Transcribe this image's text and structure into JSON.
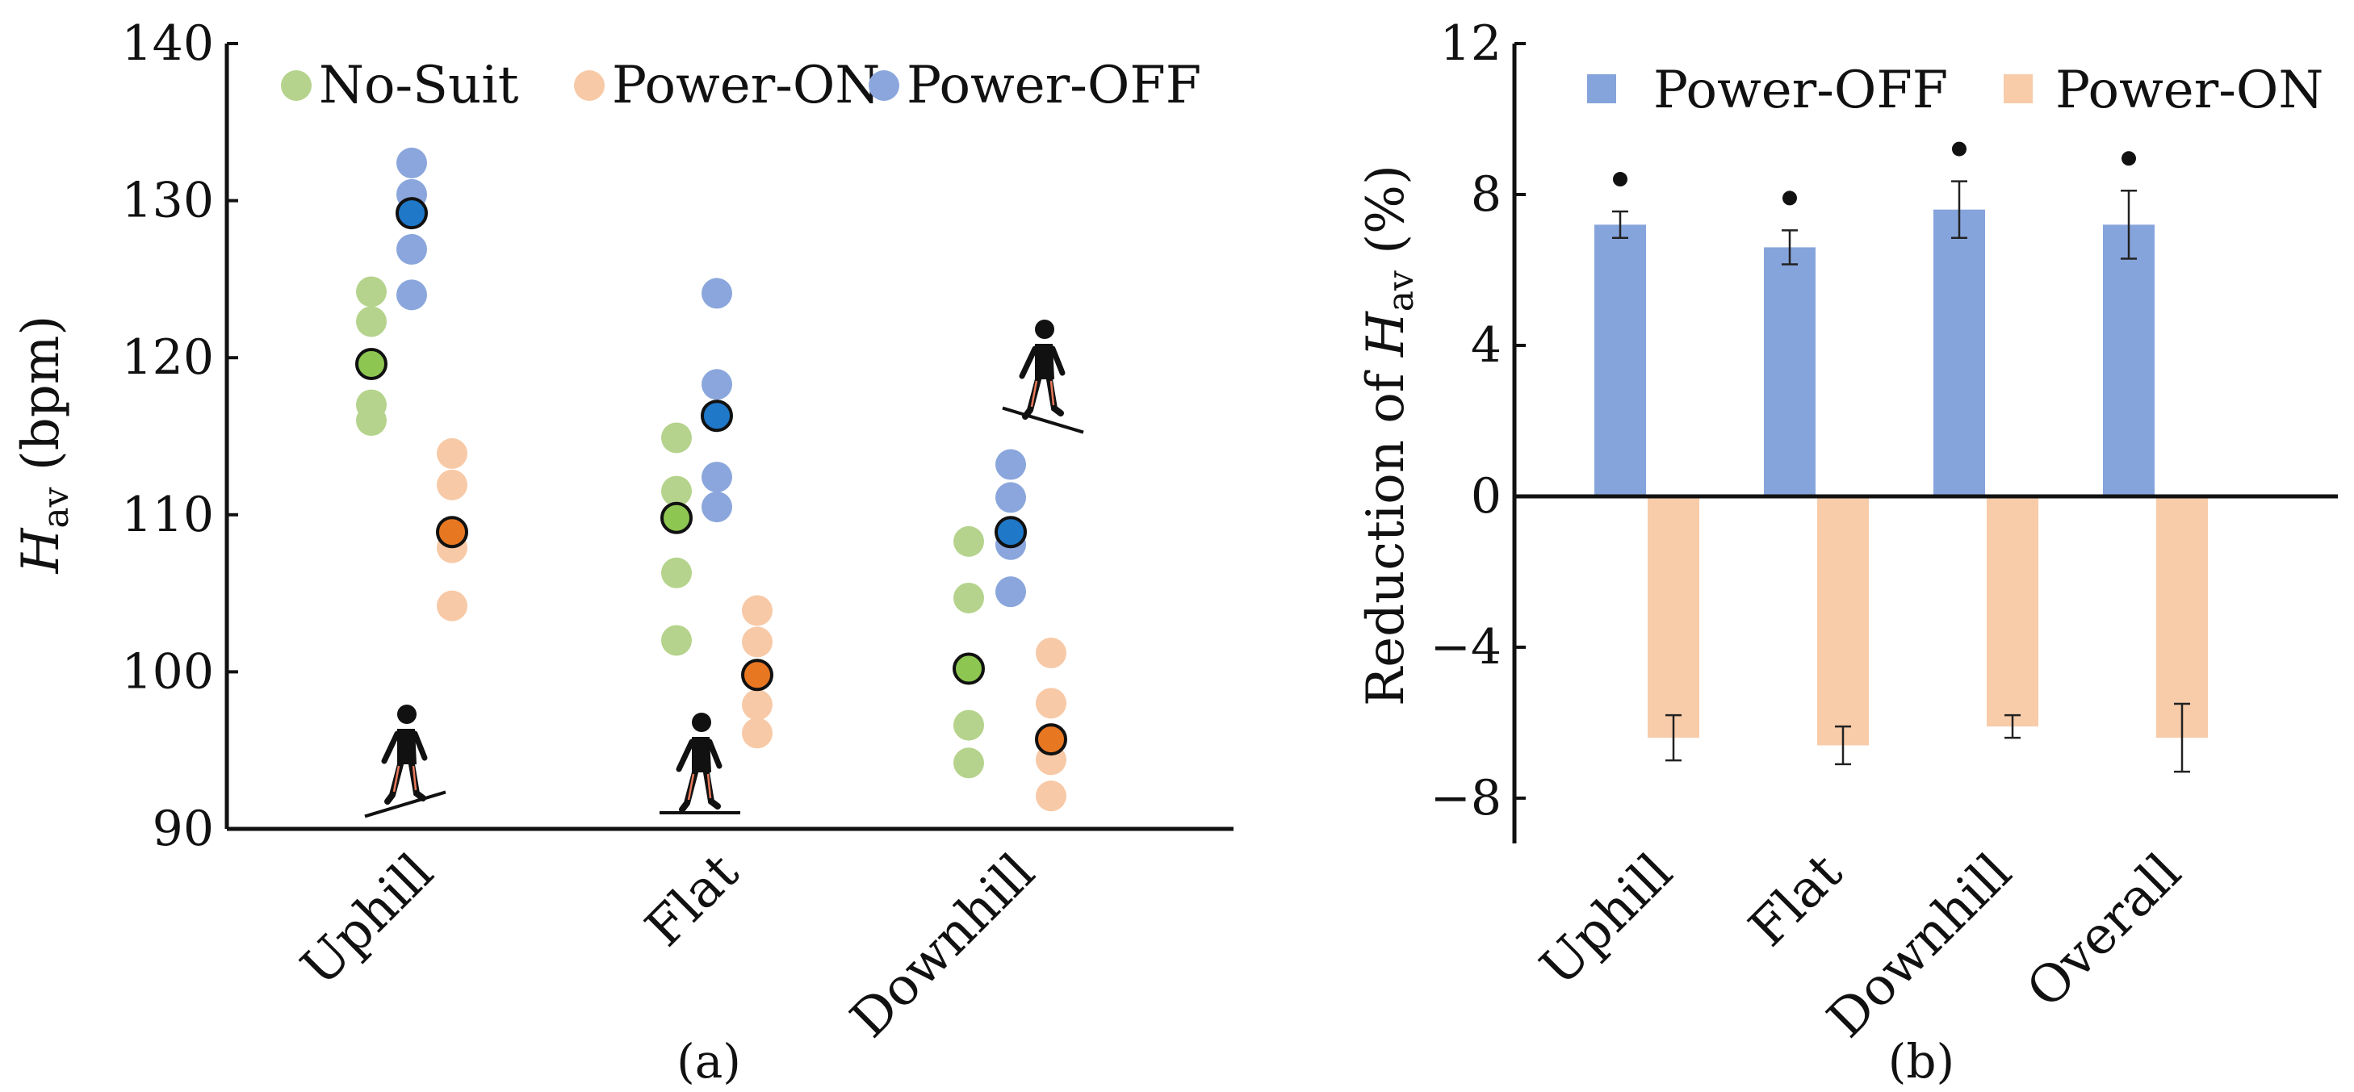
{
  "chart_data": [
    {
      "id": "a",
      "type": "scatter",
      "caption": "(a)",
      "ylabel_main": "H",
      "ylabel_sub": "av",
      "ylabel_unit": "(bpm)",
      "ylim": [
        90,
        140
      ],
      "yticks": [
        "90",
        "100",
        "110",
        "120",
        "130",
        "140"
      ],
      "categories": [
        "Uphill",
        "Flat",
        "Downhill"
      ],
      "legend": [
        {
          "name": "No-Suit",
          "color": "#b5d38c"
        },
        {
          "name": "Power-ON",
          "color": "#f7c9a6"
        },
        {
          "name": "Power-OFF",
          "color": "#8aa6dc"
        }
      ],
      "series": [
        {
          "name": "No-Suit",
          "color": "#b5d38c",
          "mean_color": "#8dc651",
          "points": [
            [
              124.2,
              122.3,
              117.0,
              116.0
            ],
            [
              114.9,
              111.5,
              106.3,
              102.0
            ],
            [
              108.3,
              104.7,
              96.6,
              94.2
            ]
          ],
          "means": [
            119.6,
            109.8,
            100.2
          ]
        },
        {
          "name": "Power-ON",
          "color": "#f7c9a6",
          "mean_color": "#e87722",
          "points": [
            [
              113.9,
              111.9,
              107.9,
              104.2
            ],
            [
              103.9,
              101.9,
              97.9,
              96.1
            ],
            [
              101.2,
              98.0,
              94.4,
              92.1
            ]
          ],
          "means": [
            108.9,
            99.8,
            95.7
          ]
        },
        {
          "name": "Power-OFF",
          "color": "#8aa6dc",
          "mean_color": "#1f78c8",
          "points": [
            [
              132.4,
              130.4,
              126.9,
              124.0
            ],
            [
              124.1,
              118.3,
              112.4,
              110.5
            ],
            [
              113.2,
              111.1,
              108.1,
              105.1
            ]
          ],
          "means": [
            129.2,
            116.3,
            108.9
          ]
        }
      ]
    },
    {
      "id": "b",
      "type": "bar",
      "caption": "(b)",
      "ylabel_main": "Reduction of ",
      "ylabel_var": "H",
      "ylabel_sub": "av",
      "ylabel_unit": "(%)",
      "ylim": [
        -9.2,
        12
      ],
      "yticks": [
        "12",
        "8",
        "4",
        "0",
        "−4",
        "−8"
      ],
      "categories": [
        "Uphill",
        "Flat",
        "Downhill",
        "Overall"
      ],
      "series": [
        {
          "name": "Power-OFF",
          "color": "#86a4dc",
          "values": [
            7.2,
            6.6,
            7.6,
            7.2
          ],
          "errors": [
            0.35,
            0.45,
            0.75,
            0.9
          ],
          "significance": [
            true,
            true,
            true,
            true
          ]
        },
        {
          "name": "Power-ON",
          "color": "#f8cba9",
          "values": [
            -6.4,
            -6.6,
            -6.1,
            -6.4
          ],
          "errors": [
            0.6,
            0.5,
            0.3,
            0.9
          ]
        }
      ]
    }
  ]
}
